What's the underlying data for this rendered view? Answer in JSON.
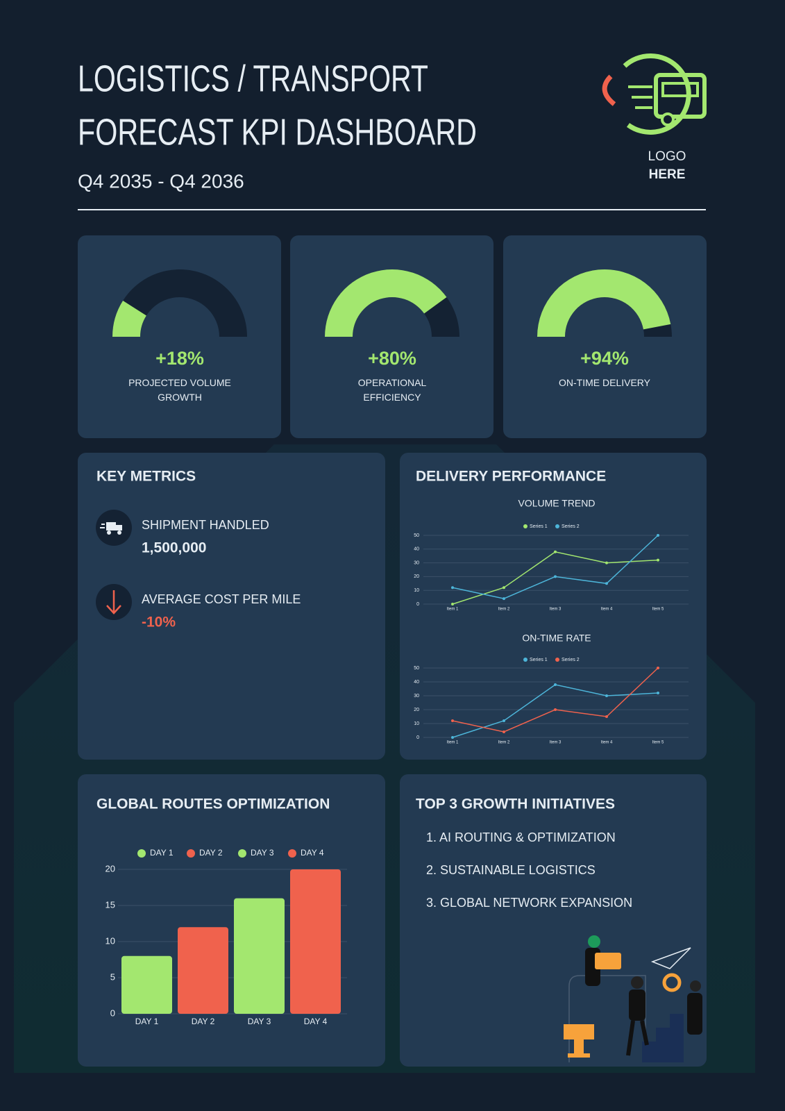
{
  "header": {
    "title": [
      "LOGISTICS / TRANSPORT",
      "FORECAST KPI DASHBOARD"
    ],
    "subtitle": "Q4 2035 - Q4 2036",
    "logo": [
      "LOGO",
      "HERE"
    ]
  },
  "sections": {
    "key_metrics": {
      "title": "KEY METRICS",
      "items": [
        {
          "label": "SHIPMENT HANDLED",
          "value": "1,500,000"
        },
        {
          "label": "AVERAGE COST PER MILE",
          "value": "-10%"
        }
      ]
    },
    "delivery_performance": {
      "title": "DELIVERY PERFORMANCE"
    },
    "global_routes": {
      "title": "GLOBAL ROUTES OPTIMIZATION"
    },
    "growth_initiatives": {
      "title": "TOP 3 GROWTH INITIATIVES",
      "items": [
        "1. AI ROUTING & OPTIMIZATION",
        "2. SUSTAINABLE LOGISTICS",
        "3. GLOBAL NETWORK EXPANSION"
      ]
    }
  },
  "chart_data": [
    {
      "type": "gauge",
      "value": 18,
      "value_label": "+18%",
      "label": "PROJECTED VOLUME GROWTH",
      "ylim": [
        0,
        100
      ],
      "color": "#a3e76f"
    },
    {
      "type": "gauge",
      "value": 80,
      "value_label": "+80%",
      "label": "OPERATIONAL EFFICIENCY",
      "ylim": [
        0,
        100
      ],
      "color": "#a3e76f"
    },
    {
      "type": "gauge",
      "value": 94,
      "value_label": "+94%",
      "label": "ON-TIME DELIVERY",
      "ylim": [
        0,
        100
      ],
      "color": "#a3e76f"
    },
    {
      "type": "line",
      "title": "VOLUME TREND",
      "categories": [
        "Item 1",
        "Item 2",
        "Item 3",
        "Item 4",
        "Item 5"
      ],
      "series": [
        {
          "name": "Series 1",
          "color": "#a3e76f",
          "values": [
            0,
            12,
            38,
            30,
            32
          ]
        },
        {
          "name": "Series 2",
          "color": "#4db5d9",
          "values": [
            12,
            4,
            20,
            15,
            50
          ]
        }
      ],
      "ylim": [
        0,
        50
      ],
      "yticks": [
        0,
        10,
        20,
        30,
        40,
        50
      ],
      "grid": true
    },
    {
      "type": "line",
      "title": "ON-TIME RATE",
      "categories": [
        "Item 1",
        "Item 2",
        "Item 3",
        "Item 4",
        "Item 5"
      ],
      "series": [
        {
          "name": "Series 1",
          "color": "#4db5d9",
          "values": [
            0,
            12,
            38,
            30,
            32
          ]
        },
        {
          "name": "Series 2",
          "color": "#f0624d",
          "values": [
            12,
            4,
            20,
            15,
            50
          ]
        }
      ],
      "ylim": [
        0,
        50
      ],
      "yticks": [
        0,
        10,
        20,
        30,
        40,
        50
      ],
      "grid": true
    },
    {
      "type": "bar",
      "categories": [
        "DAY 1",
        "DAY 2",
        "DAY 3",
        "DAY 4"
      ],
      "values": [
        8,
        12,
        16,
        20
      ],
      "colors": [
        "#a3e76f",
        "#f0624d",
        "#a3e76f",
        "#f0624d"
      ],
      "ylim": [
        0,
        20
      ],
      "yticks": [
        0,
        5,
        10,
        15,
        20
      ],
      "grid": true
    }
  ]
}
